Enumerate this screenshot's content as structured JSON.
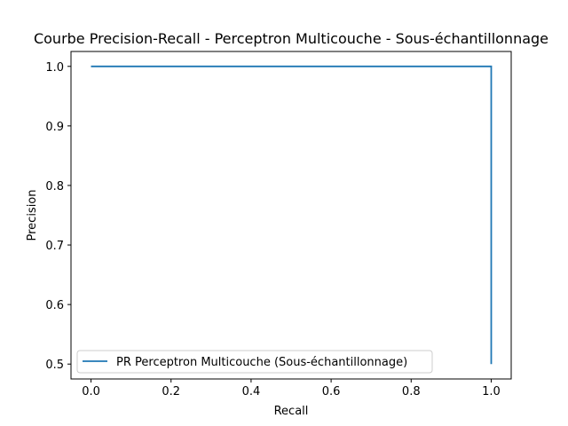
{
  "chart_data": {
    "type": "line",
    "title": "Courbe Precision-Recall - Perceptron Multicouche - Sous-échantillonnage",
    "xlabel": "Recall",
    "ylabel": "Precision",
    "xlim": [
      -0.05,
      1.05
    ],
    "ylim": [
      0.475,
      1.025
    ],
    "xticks": [
      0.0,
      0.2,
      0.4,
      0.6,
      0.8,
      1.0
    ],
    "xtick_labels": [
      "0.0",
      "0.2",
      "0.4",
      "0.6",
      "0.8",
      "1.0"
    ],
    "yticks": [
      0.5,
      0.6,
      0.7,
      0.8,
      0.9,
      1.0
    ],
    "ytick_labels": [
      "0.5",
      "0.6",
      "0.7",
      "0.8",
      "0.9",
      "1.0"
    ],
    "grid": false,
    "legend_position": "lower-left",
    "series": [
      {
        "name": "PR Perceptron Multicouche (Sous-échantillonnage)",
        "color": "#1f77b4",
        "x": [
          0.0,
          1.0,
          1.0
        ],
        "y": [
          1.0,
          1.0,
          0.5
        ]
      }
    ]
  }
}
